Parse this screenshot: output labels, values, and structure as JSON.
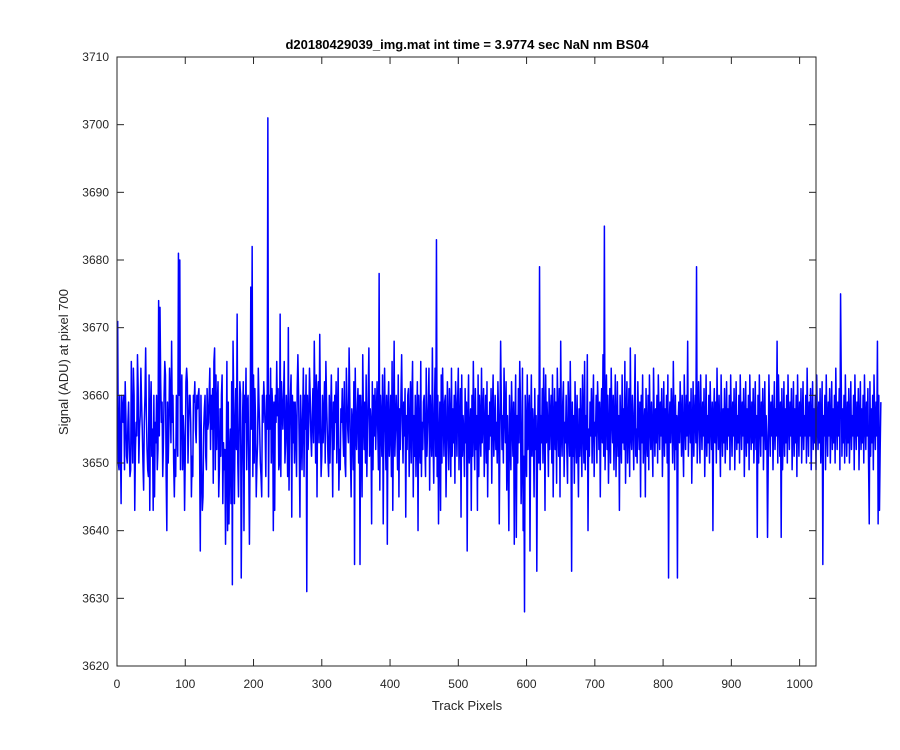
{
  "chart_data": {
    "type": "line",
    "title": "d20180429039_img.mat int time = 3.9774 sec  NaN nm BS04",
    "xlabel": "Track Pixels",
    "ylabel": "Signal (ADU) at pixel 700",
    "xlim": [
      0,
      1024
    ],
    "ylim": [
      3620,
      3710
    ],
    "xticks": [
      0,
      100,
      200,
      300,
      400,
      500,
      600,
      700,
      800,
      900,
      1000
    ],
    "yticks": [
      3620,
      3630,
      3640,
      3650,
      3660,
      3670,
      3680,
      3690,
      3700,
      3710
    ],
    "grid": false,
    "series": [
      {
        "color": "#0000ff",
        "x_start": 1,
        "x_step": 1,
        "values": [
          3671,
          3650,
          3649,
          3660,
          3653,
          3644,
          3660,
          3658,
          3656,
          3660,
          3649,
          3662,
          3657,
          3651,
          3650,
          3656,
          3659,
          3652,
          3648,
          3649,
          3665,
          3655,
          3650,
          3664,
          3660,
          3643,
          3652,
          3656,
          3654,
          3666,
          3661,
          3650,
          3655,
          3657,
          3664,
          3659,
          3655,
          3650,
          3646,
          3656,
          3660,
          3667,
          3657,
          3652,
          3649,
          3648,
          3663,
          3643,
          3658,
          3662,
          3651,
          3655,
          3643,
          3660,
          3645,
          3656,
          3653,
          3660,
          3649,
          3652,
          3674,
          3654,
          3673,
          3662,
          3656,
          3659,
          3648,
          3653,
          3660,
          3665,
          3663,
          3648,
          3640,
          3659,
          3650,
          3655,
          3664,
          3660,
          3653,
          3668,
          3656,
          3660,
          3650,
          3645,
          3652,
          3648,
          3660,
          3655,
          3651,
          3681,
          3660,
          3680,
          3649,
          3659,
          3663,
          3649,
          3657,
          3654,
          3643,
          3651,
          3662,
          3664,
          3662,
          3650,
          3655,
          3660,
          3660,
          3656,
          3645,
          3651,
          3648,
          3660,
          3659,
          3662,
          3655,
          3653,
          3660,
          3658,
          3660,
          3661,
          3652,
          3637,
          3660,
          3649,
          3643,
          3645,
          3655,
          3658,
          3660,
          3651,
          3649,
          3661,
          3655,
          3656,
          3660,
          3664,
          3652,
          3660,
          3655,
          3661,
          3647,
          3665,
          3667,
          3649,
          3663,
          3652,
          3659,
          3662,
          3645,
          3649,
          3658,
          3651,
          3660,
          3663,
          3644,
          3653,
          3649,
          3652,
          3638,
          3650,
          3665,
          3640,
          3659,
          3641,
          3651,
          3655,
          3644,
          3662,
          3632,
          3668,
          3659,
          3644,
          3655,
          3661,
          3652,
          3672,
          3650,
          3645,
          3655,
          3662,
          3660,
          3633,
          3648,
          3657,
          3662,
          3640,
          3660,
          3656,
          3664,
          3649,
          3659,
          3660,
          3650,
          3638,
          3652,
          3676,
          3655,
          3682,
          3648,
          3663,
          3650,
          3661,
          3656,
          3645,
          3650,
          3653,
          3664,
          3659,
          3655,
          3650,
          3648,
          3645,
          3660,
          3656,
          3662,
          3659,
          3655,
          3648,
          3660,
          3655,
          3701,
          3645,
          3660,
          3655,
          3664,
          3650,
          3661,
          3658,
          3640,
          3659,
          3643,
          3660,
          3656,
          3665,
          3657,
          3661,
          3649,
          3650,
          3672,
          3648,
          3662,
          3658,
          3655,
          3660,
          3665,
          3650,
          3653,
          3660,
          3656,
          3648,
          3670,
          3646,
          3655,
          3660,
          3663,
          3642,
          3660,
          3653,
          3659,
          3650,
          3659,
          3655,
          3648,
          3661,
          3666,
          3660,
          3652,
          3642,
          3660,
          3655,
          3649,
          3657,
          3664,
          3648,
          3660,
          3655,
          3663,
          3631,
          3660,
          3652,
          3656,
          3664,
          3660,
          3654,
          3651,
          3657,
          3661,
          3653,
          3668,
          3659,
          3650,
          3663,
          3645,
          3660,
          3662,
          3653,
          3669,
          3657,
          3648,
          3651,
          3660,
          3653,
          3657,
          3662,
          3650,
          3665,
          3659,
          3655,
          3651,
          3648,
          3660,
          3650,
          3657,
          3663,
          3655,
          3645,
          3659,
          3652,
          3660,
          3656,
          3662,
          3650,
          3657,
          3664,
          3646,
          3652,
          3649,
          3658,
          3656,
          3661,
          3655,
          3651,
          3662,
          3650,
          3648,
          3664,
          3659,
          3655,
          3653,
          3667,
          3660,
          3651,
          3645,
          3658,
          3656,
          3649,
          3662,
          3635,
          3664,
          3655,
          3652,
          3658,
          3661,
          3650,
          3660,
          3635,
          3660,
          3656,
          3645,
          3666,
          3657,
          3652,
          3659,
          3650,
          3663,
          3648,
          3655,
          3660,
          3667,
          3651,
          3658,
          3656,
          3641,
          3662,
          3649,
          3660,
          3654,
          3661,
          3652,
          3657,
          3662,
          3655,
          3649,
          3678,
          3646,
          3660,
          3656,
          3651,
          3663,
          3641,
          3657,
          3664,
          3655,
          3649,
          3660,
          3638,
          3658,
          3662,
          3651,
          3655,
          3660,
          3648,
          3665,
          3643,
          3656,
          3668,
          3651,
          3655,
          3660,
          3656,
          3649,
          3663,
          3645,
          3658,
          3652,
          3660,
          3666,
          3656,
          3650,
          3659,
          3654,
          3661,
          3642,
          3657,
          3652,
          3660,
          3661,
          3648,
          3655,
          3662,
          3650,
          3659,
          3665,
          3645,
          3657,
          3651,
          3660,
          3648,
          3656,
          3662,
          3640,
          3660,
          3654,
          3650,
          3665,
          3648,
          3656,
          3652,
          3659,
          3660,
          3653,
          3648,
          3664,
          3651,
          3655,
          3659,
          3664,
          3646,
          3660,
          3655,
          3651,
          3667,
          3654,
          3647,
          3658,
          3664,
          3651,
          3683,
          3648,
          3660,
          3641,
          3654,
          3659,
          3643,
          3663,
          3650,
          3664,
          3657,
          3651,
          3659,
          3660,
          3645,
          3653,
          3662,
          3655,
          3649,
          3661,
          3656,
          3648,
          3664,
          3651,
          3658,
          3653,
          3660,
          3647,
          3662,
          3658,
          3651,
          3659,
          3664,
          3649,
          3655,
          3661,
          3642,
          3663,
          3651,
          3657,
          3654,
          3648,
          3661,
          3653,
          3659,
          3637,
          3656,
          3663,
          3650,
          3654,
          3658,
          3643,
          3660,
          3651,
          3665,
          3655,
          3649,
          3661,
          3652,
          3657,
          3643,
          3663,
          3648,
          3660,
          3656,
          3651,
          3664,
          3653,
          3657,
          3661,
          3648,
          3655,
          3660,
          3650,
          3662,
          3645,
          3657,
          3652,
          3659,
          3654,
          3661,
          3647,
          3658,
          3663,
          3651,
          3655,
          3660,
          3652,
          3656,
          3650,
          3662,
          3657,
          3641,
          3655,
          3668,
          3659,
          3652,
          3657,
          3650,
          3664,
          3658,
          3653,
          3662,
          3646,
          3657,
          3651,
          3640,
          3660,
          3654,
          3649,
          3662,
          3656,
          3651,
          3659,
          3638,
          3655,
          3663,
          3639,
          3657,
          3650,
          3661,
          3653,
          3665,
          3659,
          3644,
          3650,
          3664,
          3640,
          3651,
          3628,
          3660,
          3655,
          3648,
          3663,
          3652,
          3657,
          3660,
          3637,
          3655,
          3663,
          3651,
          3658,
          3655,
          3645,
          3661,
          3652,
          3657,
          3634,
          3653,
          3660,
          3650,
          3679,
          3649,
          3657,
          3653,
          3661,
          3650,
          3664,
          3657,
          3643,
          3663,
          3653,
          3659,
          3655,
          3648,
          3661,
          3652,
          3657,
          3660,
          3650,
          3663,
          3645,
          3656,
          3661,
          3652,
          3659,
          3647,
          3664,
          3657,
          3651,
          3661,
          3645,
          3668,
          3655,
          3651,
          3659,
          3662,
          3648,
          3656,
          3653,
          3660,
          3652,
          3647,
          3662,
          3656,
          3651,
          3665,
          3655,
          3634,
          3659,
          3651,
          3657,
          3647,
          3662,
          3655,
          3650,
          3660,
          3653,
          3645,
          3658,
          3651,
          3661,
          3654,
          3648,
          3663,
          3656,
          3650,
          3665,
          3649,
          3657,
          3652,
          3666,
          3640,
          3655,
          3651,
          3659,
          3654,
          3661,
          3650,
          3657,
          3663,
          3648,
          3656,
          3654,
          3660,
          3650,
          3662,
          3658,
          3652,
          3659,
          3645,
          3657,
          3661,
          3653,
          3666,
          3651,
          3685,
          3649,
          3657,
          3663,
          3652,
          3660,
          3647,
          3655,
          3661,
          3650,
          3664,
          3657,
          3653,
          3660,
          3649,
          3656,
          3663,
          3648,
          3655,
          3662,
          3651,
          3657,
          3643,
          3660,
          3655,
          3650,
          3663,
          3653,
          3658,
          3652,
          3665,
          3647,
          3657,
          3662,
          3650,
          3655,
          3661,
          3648,
          3667,
          3654,
          3652,
          3660,
          3656,
          3649,
          3658,
          3666,
          3651,
          3655,
          3650,
          3662,
          3656,
          3652,
          3659,
          3645,
          3660,
          3653,
          3663,
          3650,
          3655,
          3658,
          3645,
          3661,
          3654,
          3651,
          3660,
          3649,
          3663,
          3656,
          3652,
          3659,
          3654,
          3648,
          3664,
          3656,
          3651,
          3658,
          3653,
          3660,
          3650,
          3663,
          3657,
          3652,
          3659,
          3654,
          3661,
          3648,
          3655,
          3662,
          3651,
          3658,
          3653,
          3660,
          3650,
          3663,
          3633,
          3656,
          3659,
          3653,
          3661,
          3657,
          3650,
          3665,
          3655,
          3649,
          3660,
          3652,
          3657,
          3633,
          3656,
          3659,
          3653,
          3662,
          3657,
          3651,
          3660,
          3654,
          3648,
          3663,
          3656,
          3652,
          3660,
          3654,
          3668,
          3651,
          3657,
          3659,
          3653,
          3661,
          3647,
          3655,
          3662,
          3651,
          3657,
          3660,
          3653,
          3679,
          3650,
          3656,
          3662,
          3655,
          3650,
          3663,
          3656,
          3652,
          3659,
          3654,
          3661,
          3648,
          3655,
          3663,
          3651,
          3657,
          3653,
          3660,
          3650,
          3662,
          3656,
          3652,
          3659,
          3640,
          3657,
          3661,
          3653,
          3659,
          3650,
          3664,
          3656,
          3652,
          3660,
          3654,
          3648,
          3663,
          3656,
          3651,
          3658,
          3653,
          3661,
          3650,
          3655,
          3662,
          3652,
          3658,
          3654,
          3660,
          3649,
          3663,
          3656,
          3651,
          3659,
          3654,
          3661,
          3649,
          3656,
          3662,
          3652,
          3657,
          3653,
          3660,
          3650,
          3663,
          3657,
          3652,
          3659,
          3654,
          3661,
          3648,
          3656,
          3662,
          3651,
          3658,
          3653,
          3660,
          3649,
          3663,
          3656,
          3652,
          3659,
          3653,
          3661,
          3650,
          3656,
          3662,
          3652,
          3657,
          3639,
          3660,
          3650,
          3663,
          3656,
          3651,
          3659,
          3654,
          3661,
          3649,
          3656,
          3662,
          3652,
          3657,
          3654,
          3639,
          3650,
          3663,
          3657,
          3651,
          3659,
          3654,
          3660,
          3649,
          3656,
          3662,
          3652,
          3658,
          3654,
          3668,
          3650,
          3663,
          3657,
          3651,
          3659,
          3639,
          3661,
          3649,
          3655,
          3662,
          3651,
          3658,
          3653,
          3660,
          3650,
          3663,
          3656,
          3652,
          3659,
          3654,
          3661,
          3649,
          3655,
          3662,
          3651,
          3658,
          3653,
          3660,
          3648,
          3663,
          3656,
          3651,
          3659,
          3654,
          3661,
          3650,
          3656,
          3662,
          3652,
          3657,
          3654,
          3660,
          3650,
          3664,
          3656,
          3651,
          3659,
          3654,
          3661,
          3649,
          3656,
          3662,
          3652,
          3658,
          3653,
          3660,
          3649,
          3663,
          3656,
          3652,
          3659,
          3653,
          3661,
          3650,
          3656,
          3662,
          3635,
          3657,
          3654,
          3660,
          3649,
          3663,
          3656,
          3651,
          3659,
          3654,
          3661,
          3650,
          3656,
          3662,
          3652,
          3658,
          3653,
          3660,
          3650,
          3664,
          3656,
          3652,
          3659,
          3654,
          3661,
          3649,
          3675,
          3662,
          3651,
          3658,
          3653,
          3660,
          3650,
          3663,
          3656,
          3651,
          3659,
          3653,
          3661,
          3650,
          3656,
          3662,
          3652,
          3657,
          3654,
          3660,
          3649,
          3663,
          3656,
          3652,
          3659,
          3654,
          3661,
          3649,
          3656,
          3662,
          3652,
          3658,
          3653,
          3660,
          3650,
          3663,
          3656,
          3652,
          3659,
          3654,
          3661,
          3650,
          3641,
          3662,
          3651,
          3658,
          3653,
          3660,
          3649,
          3663,
          3656,
          3652,
          3659,
          3654,
          3668,
          3641,
          3660,
          3643,
          3652,
          3659
        ]
      }
    ]
  }
}
